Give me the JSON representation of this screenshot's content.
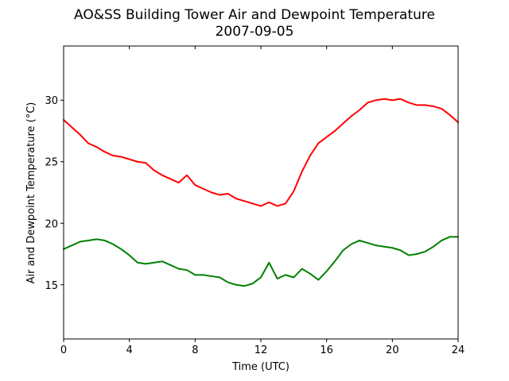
{
  "chart_data": {
    "type": "line",
    "title": "AO&SS Building Tower Air and Dewpoint Temperature",
    "subtitle": "2007-09-05",
    "xlabel": "Time (UTC)",
    "ylabel": "Air and Dewpoint Temperature (°C)",
    "xlim": [
      0,
      24
    ],
    "ylim": [
      10.6,
      34.4
    ],
    "xticks": [
      0,
      4,
      8,
      12,
      16,
      20,
      24
    ],
    "yticks": [
      15,
      20,
      25,
      30
    ],
    "grid": false,
    "series": [
      {
        "color": "#ff0000",
        "x": [
          0,
          0.5,
          1,
          1.5,
          2,
          2.5,
          3,
          3.5,
          4,
          4.5,
          5,
          5.5,
          6,
          6.5,
          7,
          7.5,
          8,
          8.5,
          9,
          9.5,
          10,
          10.5,
          11,
          11.5,
          12,
          12.5,
          13,
          13.5,
          14,
          14.5,
          15,
          15.5,
          16,
          16.5,
          17,
          17.5,
          18,
          18.5,
          19,
          19.5,
          20,
          20.5,
          21,
          21.5,
          22,
          22.5,
          23,
          23.5,
          24
        ],
        "y": [
          28.4,
          27.8,
          27.2,
          26.5,
          26.2,
          25.8,
          25.5,
          25.4,
          25.2,
          25.0,
          24.9,
          24.3,
          23.9,
          23.6,
          23.3,
          23.9,
          23.1,
          22.8,
          22.5,
          22.3,
          22.4,
          22.0,
          21.8,
          21.6,
          21.4,
          21.7,
          21.4,
          21.6,
          22.6,
          24.2,
          25.5,
          26.5,
          27.0,
          27.5,
          28.1,
          28.7,
          29.2,
          29.8,
          30.0,
          30.1,
          30.0,
          30.1,
          29.8,
          29.6,
          29.6,
          29.5,
          29.3,
          28.8,
          28.2
        ]
      },
      {
        "color": "#008000",
        "x": [
          0,
          0.5,
          1,
          1.5,
          2,
          2.5,
          3,
          3.5,
          4,
          4.5,
          5,
          5.5,
          6,
          6.5,
          7,
          7.5,
          8,
          8.5,
          9,
          9.5,
          10,
          10.5,
          11,
          11.5,
          12,
          12.5,
          13,
          13.5,
          14,
          14.5,
          15,
          15.5,
          16,
          16.5,
          17,
          17.5,
          18,
          18.5,
          19,
          19.5,
          20,
          20.5,
          21,
          21.5,
          22,
          22.5,
          23,
          23.5,
          24
        ],
        "y": [
          17.9,
          18.2,
          18.5,
          18.6,
          18.7,
          18.6,
          18.3,
          17.9,
          17.4,
          16.8,
          16.7,
          16.8,
          16.9,
          16.6,
          16.3,
          16.2,
          15.8,
          15.8,
          15.7,
          15.6,
          15.2,
          15.0,
          14.9,
          15.1,
          15.6,
          16.8,
          15.5,
          15.8,
          15.6,
          16.3,
          15.9,
          15.4,
          16.1,
          16.9,
          17.8,
          18.3,
          18.6,
          18.4,
          18.2,
          18.1,
          18.0,
          17.8,
          17.4,
          17.5,
          17.7,
          18.1,
          18.6,
          18.9,
          18.9
        ]
      }
    ]
  }
}
